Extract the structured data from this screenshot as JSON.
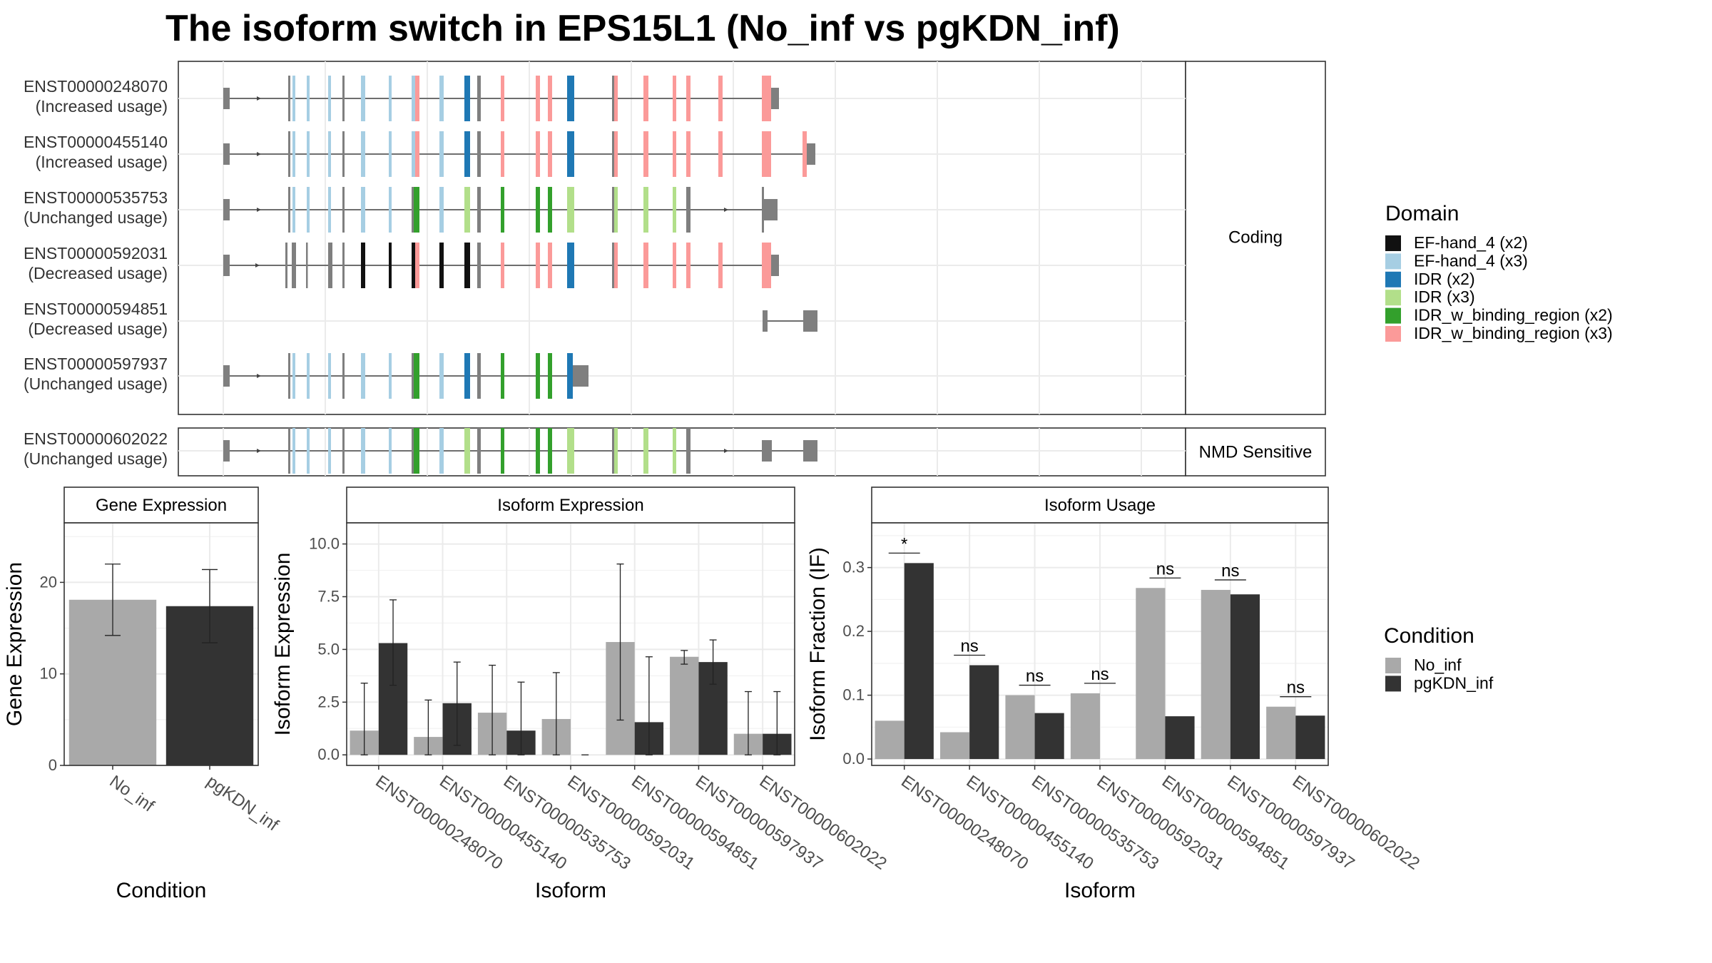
{
  "title": "The isoform switch in EPS15L1 (No_inf vs pgKDN_inf)",
  "colors": {
    "no_inf": "#A9A9A9",
    "pgkdn_inf": "#333333",
    "exon": "#7F7F7F",
    "EF-hand_4 (x2)": "#111111",
    "EF-hand_4 (x3)": "#A6CEE3",
    "IDR (x2)": "#1F78B4",
    "IDR (x3)": "#B2DF8A",
    "IDR_w_binding_region (x2)": "#33A02C",
    "IDR_w_binding_region (x3)": "#FB9A99"
  },
  "structure": {
    "strip_coding": "Coding",
    "strip_nmd": "NMD Sensitive",
    "domain_legend_title": "Domain",
    "domains": [
      "EF-hand_4 (x2)",
      "EF-hand_4 (x3)",
      "IDR (x2)",
      "IDR (x3)",
      "IDR_w_binding_region (x2)",
      "IDR_w_binding_region (x3)"
    ],
    "transcripts": [
      {
        "id": "ENST00000248070",
        "usage": "(Increased usage)",
        "group": "coding",
        "exons": [
          [
            0,
            9,
            "u"
          ],
          [
            91,
            94,
            "c"
          ],
          [
            97,
            101,
            "B"
          ],
          [
            117,
            121,
            "B"
          ],
          [
            147,
            151,
            "B"
          ],
          [
            167,
            170,
            "c"
          ],
          [
            193,
            199,
            "B"
          ],
          [
            232,
            236,
            "B"
          ],
          [
            264,
            269,
            "B"
          ],
          [
            269,
            275,
            "P"
          ],
          [
            303,
            309,
            "B"
          ],
          [
            338,
            346,
            "D"
          ],
          [
            356,
            361,
            "c"
          ],
          [
            389,
            394,
            "P"
          ],
          [
            438,
            444,
            "P"
          ],
          [
            455,
            461,
            "P"
          ],
          [
            482,
            492,
            "D"
          ],
          [
            545,
            548,
            "c"
          ],
          [
            548,
            553,
            "P"
          ],
          [
            589,
            596,
            "P"
          ],
          [
            630,
            635,
            "P"
          ],
          [
            649,
            655,
            "P"
          ],
          [
            694,
            700,
            "P"
          ],
          [
            755,
            768,
            "P"
          ],
          [
            768,
            779,
            "u"
          ]
        ],
        "arrows_to": 779
      },
      {
        "id": "ENST00000455140",
        "usage": "(Increased usage)",
        "group": "coding",
        "exons": [
          [
            0,
            9,
            "u"
          ],
          [
            91,
            94,
            "c"
          ],
          [
            97,
            101,
            "B"
          ],
          [
            117,
            121,
            "B"
          ],
          [
            147,
            151,
            "B"
          ],
          [
            167,
            170,
            "c"
          ],
          [
            193,
            199,
            "B"
          ],
          [
            232,
            236,
            "B"
          ],
          [
            264,
            269,
            "B"
          ],
          [
            269,
            275,
            "P"
          ],
          [
            303,
            309,
            "B"
          ],
          [
            338,
            346,
            "D"
          ],
          [
            356,
            361,
            "c"
          ],
          [
            389,
            394,
            "P"
          ],
          [
            438,
            444,
            "P"
          ],
          [
            455,
            461,
            "P"
          ],
          [
            482,
            492,
            "D"
          ],
          [
            545,
            548,
            "c"
          ],
          [
            548,
            553,
            "P"
          ],
          [
            589,
            596,
            "P"
          ],
          [
            630,
            635,
            "P"
          ],
          [
            649,
            655,
            "P"
          ],
          [
            694,
            700,
            "P"
          ],
          [
            755,
            768,
            "P"
          ],
          [
            812,
            818,
            "P"
          ],
          [
            818,
            830,
            "u"
          ]
        ],
        "arrows_to": 830
      },
      {
        "id": "ENST00000535753",
        "usage": "(Unchanged usage)",
        "group": "coding",
        "exons": [
          [
            0,
            9,
            "u"
          ],
          [
            91,
            94,
            "c"
          ],
          [
            97,
            101,
            "B"
          ],
          [
            117,
            121,
            "B"
          ],
          [
            147,
            151,
            "B"
          ],
          [
            167,
            170,
            "c"
          ],
          [
            193,
            199,
            "B"
          ],
          [
            232,
            236,
            "B"
          ],
          [
            264,
            267,
            "c"
          ],
          [
            267,
            275,
            "G"
          ],
          [
            303,
            309,
            "B"
          ],
          [
            338,
            346,
            "L"
          ],
          [
            356,
            361,
            "c"
          ],
          [
            389,
            394,
            "G"
          ],
          [
            438,
            444,
            "G"
          ],
          [
            455,
            461,
            "G"
          ],
          [
            482,
            492,
            "L"
          ],
          [
            545,
            548,
            "c"
          ],
          [
            548,
            553,
            "L"
          ],
          [
            589,
            596,
            "L"
          ],
          [
            630,
            635,
            "L"
          ],
          [
            649,
            655,
            "c"
          ],
          [
            755,
            758,
            "c"
          ],
          [
            758,
            777,
            "u"
          ]
        ],
        "arrows_to": 777
      },
      {
        "id": "ENST00000592031",
        "usage": "(Decreased usage)",
        "group": "coding",
        "exons": [
          [
            0,
            9,
            "u"
          ],
          [
            87,
            90,
            "c"
          ],
          [
            96,
            102,
            "c"
          ],
          [
            116,
            118,
            "c"
          ],
          [
            147,
            153,
            "c"
          ],
          [
            167,
            170,
            "c"
          ],
          [
            193,
            199,
            "K"
          ],
          [
            232,
            236,
            "K"
          ],
          [
            264,
            269,
            "K"
          ],
          [
            269,
            275,
            "P"
          ],
          [
            303,
            309,
            "K"
          ],
          [
            338,
            346,
            "K"
          ],
          [
            356,
            361,
            "c"
          ],
          [
            389,
            394,
            "P"
          ],
          [
            438,
            444,
            "P"
          ],
          [
            455,
            461,
            "P"
          ],
          [
            482,
            492,
            "D"
          ],
          [
            545,
            548,
            "c"
          ],
          [
            548,
            553,
            "P"
          ],
          [
            589,
            596,
            "P"
          ],
          [
            630,
            635,
            "P"
          ],
          [
            649,
            655,
            "P"
          ],
          [
            694,
            700,
            "P"
          ],
          [
            755,
            768,
            "P"
          ],
          [
            768,
            779,
            "u"
          ]
        ],
        "arrows_to": 779
      },
      {
        "id": "ENST00000594851",
        "usage": "(Decreased usage)",
        "group": "coding",
        "exons": [
          [
            756,
            763,
            "u"
          ],
          [
            813,
            833,
            "u"
          ]
        ],
        "arrows_from": 763,
        "arrows_to": 813
      },
      {
        "id": "ENST00000597937",
        "usage": "(Unchanged usage)",
        "group": "coding",
        "exons": [
          [
            0,
            9,
            "u"
          ],
          [
            91,
            94,
            "c"
          ],
          [
            97,
            101,
            "B"
          ],
          [
            117,
            121,
            "B"
          ],
          [
            147,
            151,
            "B"
          ],
          [
            167,
            170,
            "c"
          ],
          [
            193,
            199,
            "B"
          ],
          [
            232,
            236,
            "B"
          ],
          [
            264,
            267,
            "c"
          ],
          [
            267,
            275,
            "G"
          ],
          [
            303,
            309,
            "B"
          ],
          [
            338,
            346,
            "D"
          ],
          [
            356,
            361,
            "c"
          ],
          [
            389,
            394,
            "G"
          ],
          [
            438,
            444,
            "G"
          ],
          [
            455,
            461,
            "G"
          ],
          [
            482,
            490,
            "D"
          ],
          [
            490,
            512,
            "u"
          ]
        ],
        "arrows_to": 490
      },
      {
        "id": "ENST00000602022",
        "usage": "(Unchanged usage)",
        "group": "nmd",
        "exons": [
          [
            0,
            9,
            "u"
          ],
          [
            91,
            94,
            "c"
          ],
          [
            97,
            101,
            "B"
          ],
          [
            117,
            121,
            "B"
          ],
          [
            147,
            151,
            "B"
          ],
          [
            167,
            170,
            "c"
          ],
          [
            193,
            199,
            "B"
          ],
          [
            232,
            236,
            "B"
          ],
          [
            264,
            267,
            "c"
          ],
          [
            267,
            275,
            "G"
          ],
          [
            303,
            309,
            "B"
          ],
          [
            338,
            346,
            "L"
          ],
          [
            356,
            361,
            "c"
          ],
          [
            389,
            394,
            "G"
          ],
          [
            438,
            444,
            "G"
          ],
          [
            455,
            461,
            "G"
          ],
          [
            482,
            492,
            "L"
          ],
          [
            545,
            548,
            "c"
          ],
          [
            548,
            553,
            "L"
          ],
          [
            589,
            596,
            "L"
          ],
          [
            630,
            635,
            "L"
          ],
          [
            649,
            655,
            "c"
          ],
          [
            755,
            769,
            "u"
          ],
          [
            813,
            833,
            "u"
          ]
        ],
        "arrows_to": 833
      }
    ]
  },
  "chart_data": [
    {
      "type": "bar",
      "strip": "Gene Expression",
      "xlabel": "Condition",
      "ylabel": "Gene Expression",
      "categories": [
        "No_inf",
        "pgKDN_inf"
      ],
      "values": [
        18.1,
        17.4
      ],
      "error_low": [
        14.2,
        13.4
      ],
      "error_high": [
        22.0,
        21.4
      ],
      "ylim": [
        0,
        26.5
      ],
      "yticks": [
        0,
        10,
        20
      ],
      "grid": true
    },
    {
      "type": "bar",
      "strip": "Isoform Expression",
      "xlabel": "Isoform",
      "ylabel": "Isoform Expression",
      "categories": [
        "ENST00000248070",
        "ENST00000455140",
        "ENST00000535753",
        "ENST00000592031",
        "ENST00000594851",
        "ENST00000597937",
        "ENST00000602022"
      ],
      "series": [
        {
          "name": "No_inf",
          "values": [
            1.15,
            0.85,
            2.0,
            1.7,
            5.35,
            4.65,
            1.0
          ],
          "error_low": [
            0.0,
            0.0,
            0.0,
            0.0,
            1.65,
            4.3,
            0.0
          ],
          "error_high": [
            3.4,
            2.6,
            4.25,
            3.9,
            9.05,
            4.95,
            3.0
          ]
        },
        {
          "name": "pgKDN_inf",
          "values": [
            5.3,
            2.45,
            1.15,
            0.0,
            1.55,
            4.4,
            1.0
          ],
          "error_low": [
            3.3,
            0.45,
            0.0,
            0.0,
            0.0,
            3.35,
            0.0
          ],
          "error_high": [
            7.35,
            4.4,
            3.45,
            0.0,
            4.65,
            5.45,
            3.0
          ]
        }
      ],
      "ylim": [
        -0.5,
        11.0
      ],
      "yticks": [
        0.0,
        2.5,
        5.0,
        7.5,
        10.0
      ],
      "ytick_labels": [
        "0.0",
        "2.5",
        "5.0",
        "7.5",
        "10.0"
      ],
      "grid": true
    },
    {
      "type": "bar",
      "strip": "Isoform Usage",
      "xlabel": "Isoform",
      "ylabel": "Isoform Fraction (IF)",
      "categories": [
        "ENST00000248070",
        "ENST00000455140",
        "ENST00000535753",
        "ENST00000592031",
        "ENST00000594851",
        "ENST00000597937",
        "ENST00000602022"
      ],
      "series": [
        {
          "name": "No_inf",
          "values": [
            0.06,
            0.042,
            0.1,
            0.103,
            0.268,
            0.265,
            0.082
          ]
        },
        {
          "name": "pgKDN_inf",
          "values": [
            0.307,
            0.147,
            0.072,
            0.0,
            0.067,
            0.258,
            0.068
          ]
        }
      ],
      "significance": [
        "*",
        "ns",
        "ns",
        "ns",
        "ns",
        "ns",
        "ns"
      ],
      "ylim": [
        -0.01,
        0.37
      ],
      "yticks": [
        0.0,
        0.1,
        0.2,
        0.3
      ],
      "ytick_labels": [
        "0.0",
        "0.1",
        "0.2",
        "0.3"
      ],
      "grid": true
    }
  ],
  "condition_legend": {
    "title": "Condition",
    "items": [
      "No_inf",
      "pgKDN_inf"
    ]
  }
}
